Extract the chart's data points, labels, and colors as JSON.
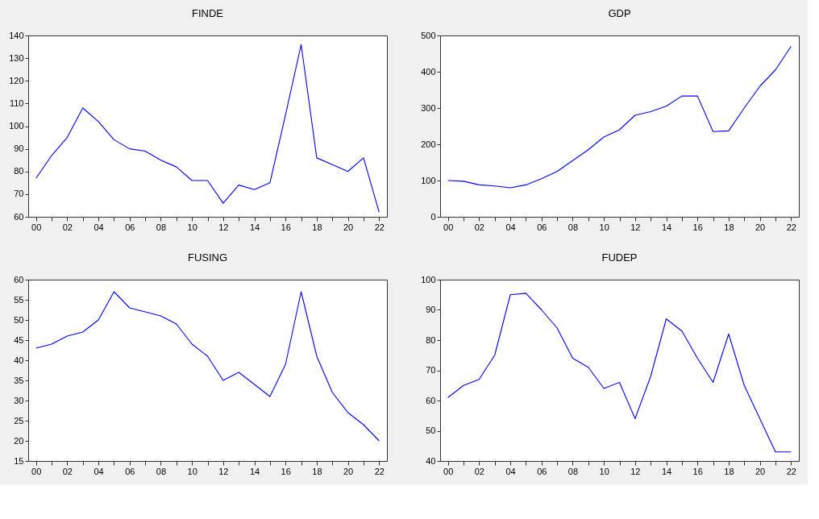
{
  "chart_data": [
    {
      "type": "line",
      "title": "FINDE",
      "categories": [
        "00",
        null,
        "02",
        null,
        "04",
        null,
        "06",
        null,
        "08",
        null,
        "10",
        null,
        "12",
        null,
        "14",
        null,
        "16",
        null,
        "18",
        null,
        "20",
        null,
        "22"
      ],
      "series": [
        {
          "color": "#0000ff",
          "values": [
            77,
            87,
            95,
            108,
            102,
            94,
            90,
            89,
            85,
            82,
            76,
            76,
            66,
            74,
            72,
            75,
            105,
            136,
            86,
            83,
            80,
            86,
            62
          ]
        }
      ],
      "ylim": [
        60,
        140
      ],
      "yticks": [
        60,
        70,
        80,
        90,
        100,
        110,
        120,
        130,
        140
      ],
      "grid": false,
      "marker": "none",
      "line_style": "solid"
    },
    {
      "type": "line",
      "title": "GDP",
      "categories": [
        "00",
        null,
        "02",
        null,
        "04",
        null,
        "06",
        null,
        "08",
        null,
        "10",
        null,
        "12",
        null,
        "14",
        null,
        "16",
        null,
        "18",
        null,
        "20",
        null,
        "22"
      ],
      "series": [
        {
          "color": "#0000ff",
          "values": [
            100,
            98,
            88,
            85,
            80,
            88,
            105,
            125,
            155,
            185,
            220,
            240,
            280,
            290,
            305,
            333,
            333,
            235,
            237,
            300,
            360,
            405,
            470
          ]
        }
      ],
      "ylim": [
        0,
        500
      ],
      "yticks": [
        0,
        100,
        200,
        300,
        400,
        500
      ],
      "grid": false,
      "marker": "none",
      "line_style": "solid"
    },
    {
      "type": "line",
      "title": "FUSING",
      "categories": [
        "00",
        null,
        "02",
        null,
        "04",
        null,
        "06",
        null,
        "08",
        null,
        "10",
        null,
        "12",
        null,
        "14",
        null,
        "16",
        null,
        "18",
        null,
        "20",
        null,
        "22"
      ],
      "series": [
        {
          "color": "#0000ff",
          "values": [
            43,
            44,
            46,
            47,
            50,
            57,
            53,
            52,
            51,
            49,
            44,
            41,
            35,
            37,
            34,
            31,
            39,
            57,
            41,
            32,
            27,
            24,
            20
          ]
        }
      ],
      "ylim": [
        15,
        60
      ],
      "yticks": [
        15,
        20,
        25,
        30,
        35,
        40,
        45,
        50,
        55,
        60
      ],
      "grid": false,
      "marker": "none",
      "line_style": "solid"
    },
    {
      "type": "line",
      "title": "FUDEP",
      "categories": [
        "00",
        null,
        "02",
        null,
        "04",
        null,
        "06",
        null,
        "08",
        null,
        "10",
        null,
        "12",
        null,
        "14",
        null,
        "16",
        null,
        "18",
        null,
        "20",
        null,
        "22"
      ],
      "series": [
        {
          "color": "#0000ff",
          "values": [
            61,
            65,
            67,
            75,
            95,
            95.5,
            90,
            84,
            74,
            71,
            64,
            66,
            54,
            68,
            87,
            83,
            74,
            66,
            82,
            65,
            54,
            43,
            43
          ]
        }
      ],
      "ylim": [
        40,
        100
      ],
      "yticks": [
        40,
        50,
        60,
        70,
        80,
        90,
        100
      ],
      "grid": false,
      "marker": "none",
      "line_style": "solid"
    }
  ]
}
